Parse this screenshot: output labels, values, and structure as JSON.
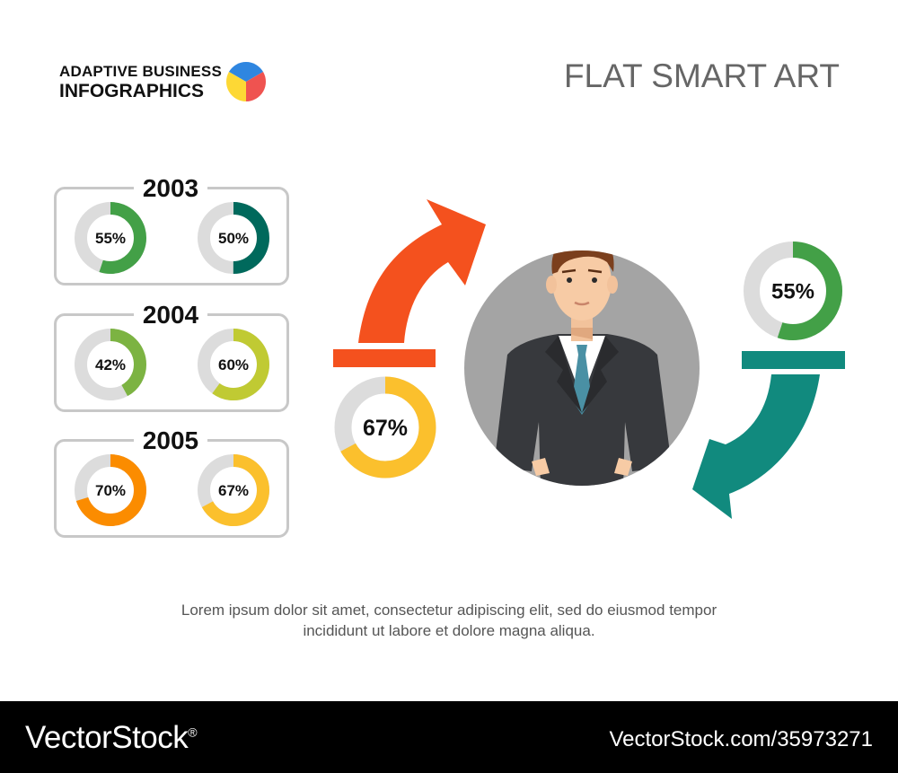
{
  "header": {
    "brand_line1": "ADAPTIVE BUSINESS",
    "brand_line2": "INFOGRAPHICS",
    "title": "FLAT SMART ART",
    "brand_pie_colors": [
      "#2f86e0",
      "#ef5350",
      "#fdd835"
    ]
  },
  "colors": {
    "track": "#dcdcdc",
    "orange_arrow": "#f4511e",
    "teal_arrow": "#118a7e",
    "person_bg": "#a4a4a4"
  },
  "chart_data": {
    "type": "donut",
    "years": [
      {
        "year": "2003",
        "items": [
          {
            "label": "55%",
            "value": 55,
            "color": "#43a047"
          },
          {
            "label": "50%",
            "value": 50,
            "color": "#00695c"
          }
        ]
      },
      {
        "year": "2004",
        "items": [
          {
            "label": "42%",
            "value": 42,
            "color": "#7cb342"
          },
          {
            "label": "60%",
            "value": 60,
            "color": "#c0ca33"
          }
        ]
      },
      {
        "year": "2005",
        "items": [
          {
            "label": "70%",
            "value": 70,
            "color": "#fb8c00"
          },
          {
            "label": "67%",
            "value": 67,
            "color": "#fbc02d"
          }
        ]
      }
    ],
    "highlights": [
      {
        "label": "67%",
        "value": 67,
        "color": "#fbc02d"
      },
      {
        "label": "55%",
        "value": 55,
        "color": "#43a047"
      }
    ]
  },
  "description": {
    "line1": "Lorem ipsum dolor sit amet, consectetur adipiscing elit, sed do eiusmod tempor",
    "line2": "incididunt ut labore et dolore magna aliqua."
  },
  "footer": {
    "brand": "VectorStock",
    "brand_mark": "®",
    "image_id": "VectorStock.com/35973271"
  }
}
